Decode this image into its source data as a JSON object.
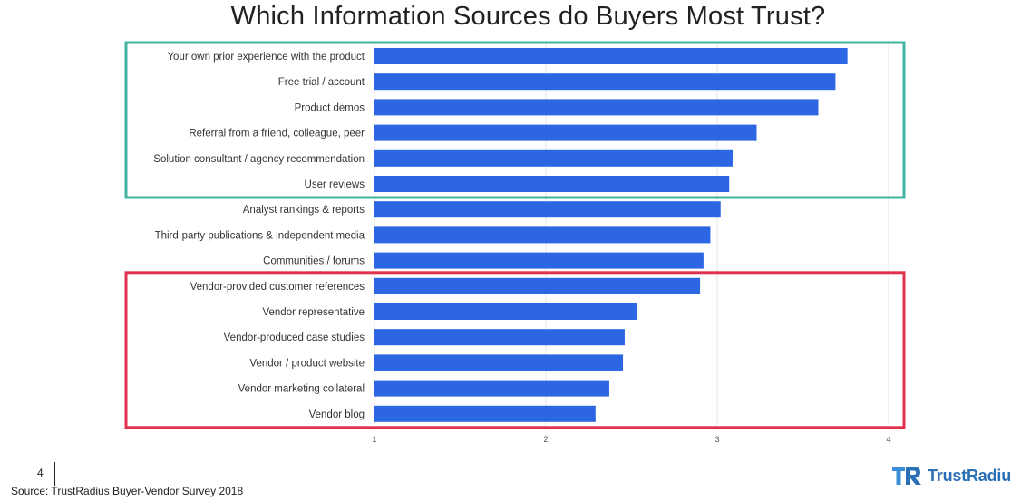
{
  "slide": {
    "title": "Which Information Sources do Buyers Most Trust?",
    "page_number": "4",
    "source": "Source: TrustRadius Buyer-Vendor Survey 2018",
    "brand": "TrustRadius"
  },
  "colors": {
    "bar": "#2d66e3",
    "highlight_trusted": "#3fb3a2",
    "highlight_vendor": "#e0314f",
    "grid": "#e4e4e4",
    "brand": "#2b6fb7"
  },
  "chart_data": {
    "type": "bar",
    "orientation": "horizontal",
    "categories": [
      "Your own prior experience with the product",
      "Free trial / account",
      "Product demos",
      "Referral from a friend, colleague, peer",
      "Solution consultant / agency recommendation",
      "User reviews",
      "Analyst rankings & reports",
      "Third-party publications & independent media",
      "Communities / forums",
      "Vendor-provided customer references",
      "Vendor representative",
      "Vendor-produced case studies",
      "Vendor / product website",
      "Vendor marketing collateral",
      "Vendor blog"
    ],
    "values": [
      3.76,
      3.69,
      3.59,
      3.23,
      3.09,
      3.07,
      3.02,
      2.96,
      2.92,
      2.9,
      2.53,
      2.46,
      2.45,
      2.37,
      2.29
    ],
    "xlim": [
      1,
      4
    ],
    "xticks": [
      "1",
      "2",
      "3",
      "4"
    ],
    "grid": "vertical",
    "highlight_groups": [
      {
        "style": "teal",
        "categories": [
          0,
          5
        ]
      },
      {
        "style": "red",
        "categories": [
          9,
          14
        ]
      }
    ]
  }
}
